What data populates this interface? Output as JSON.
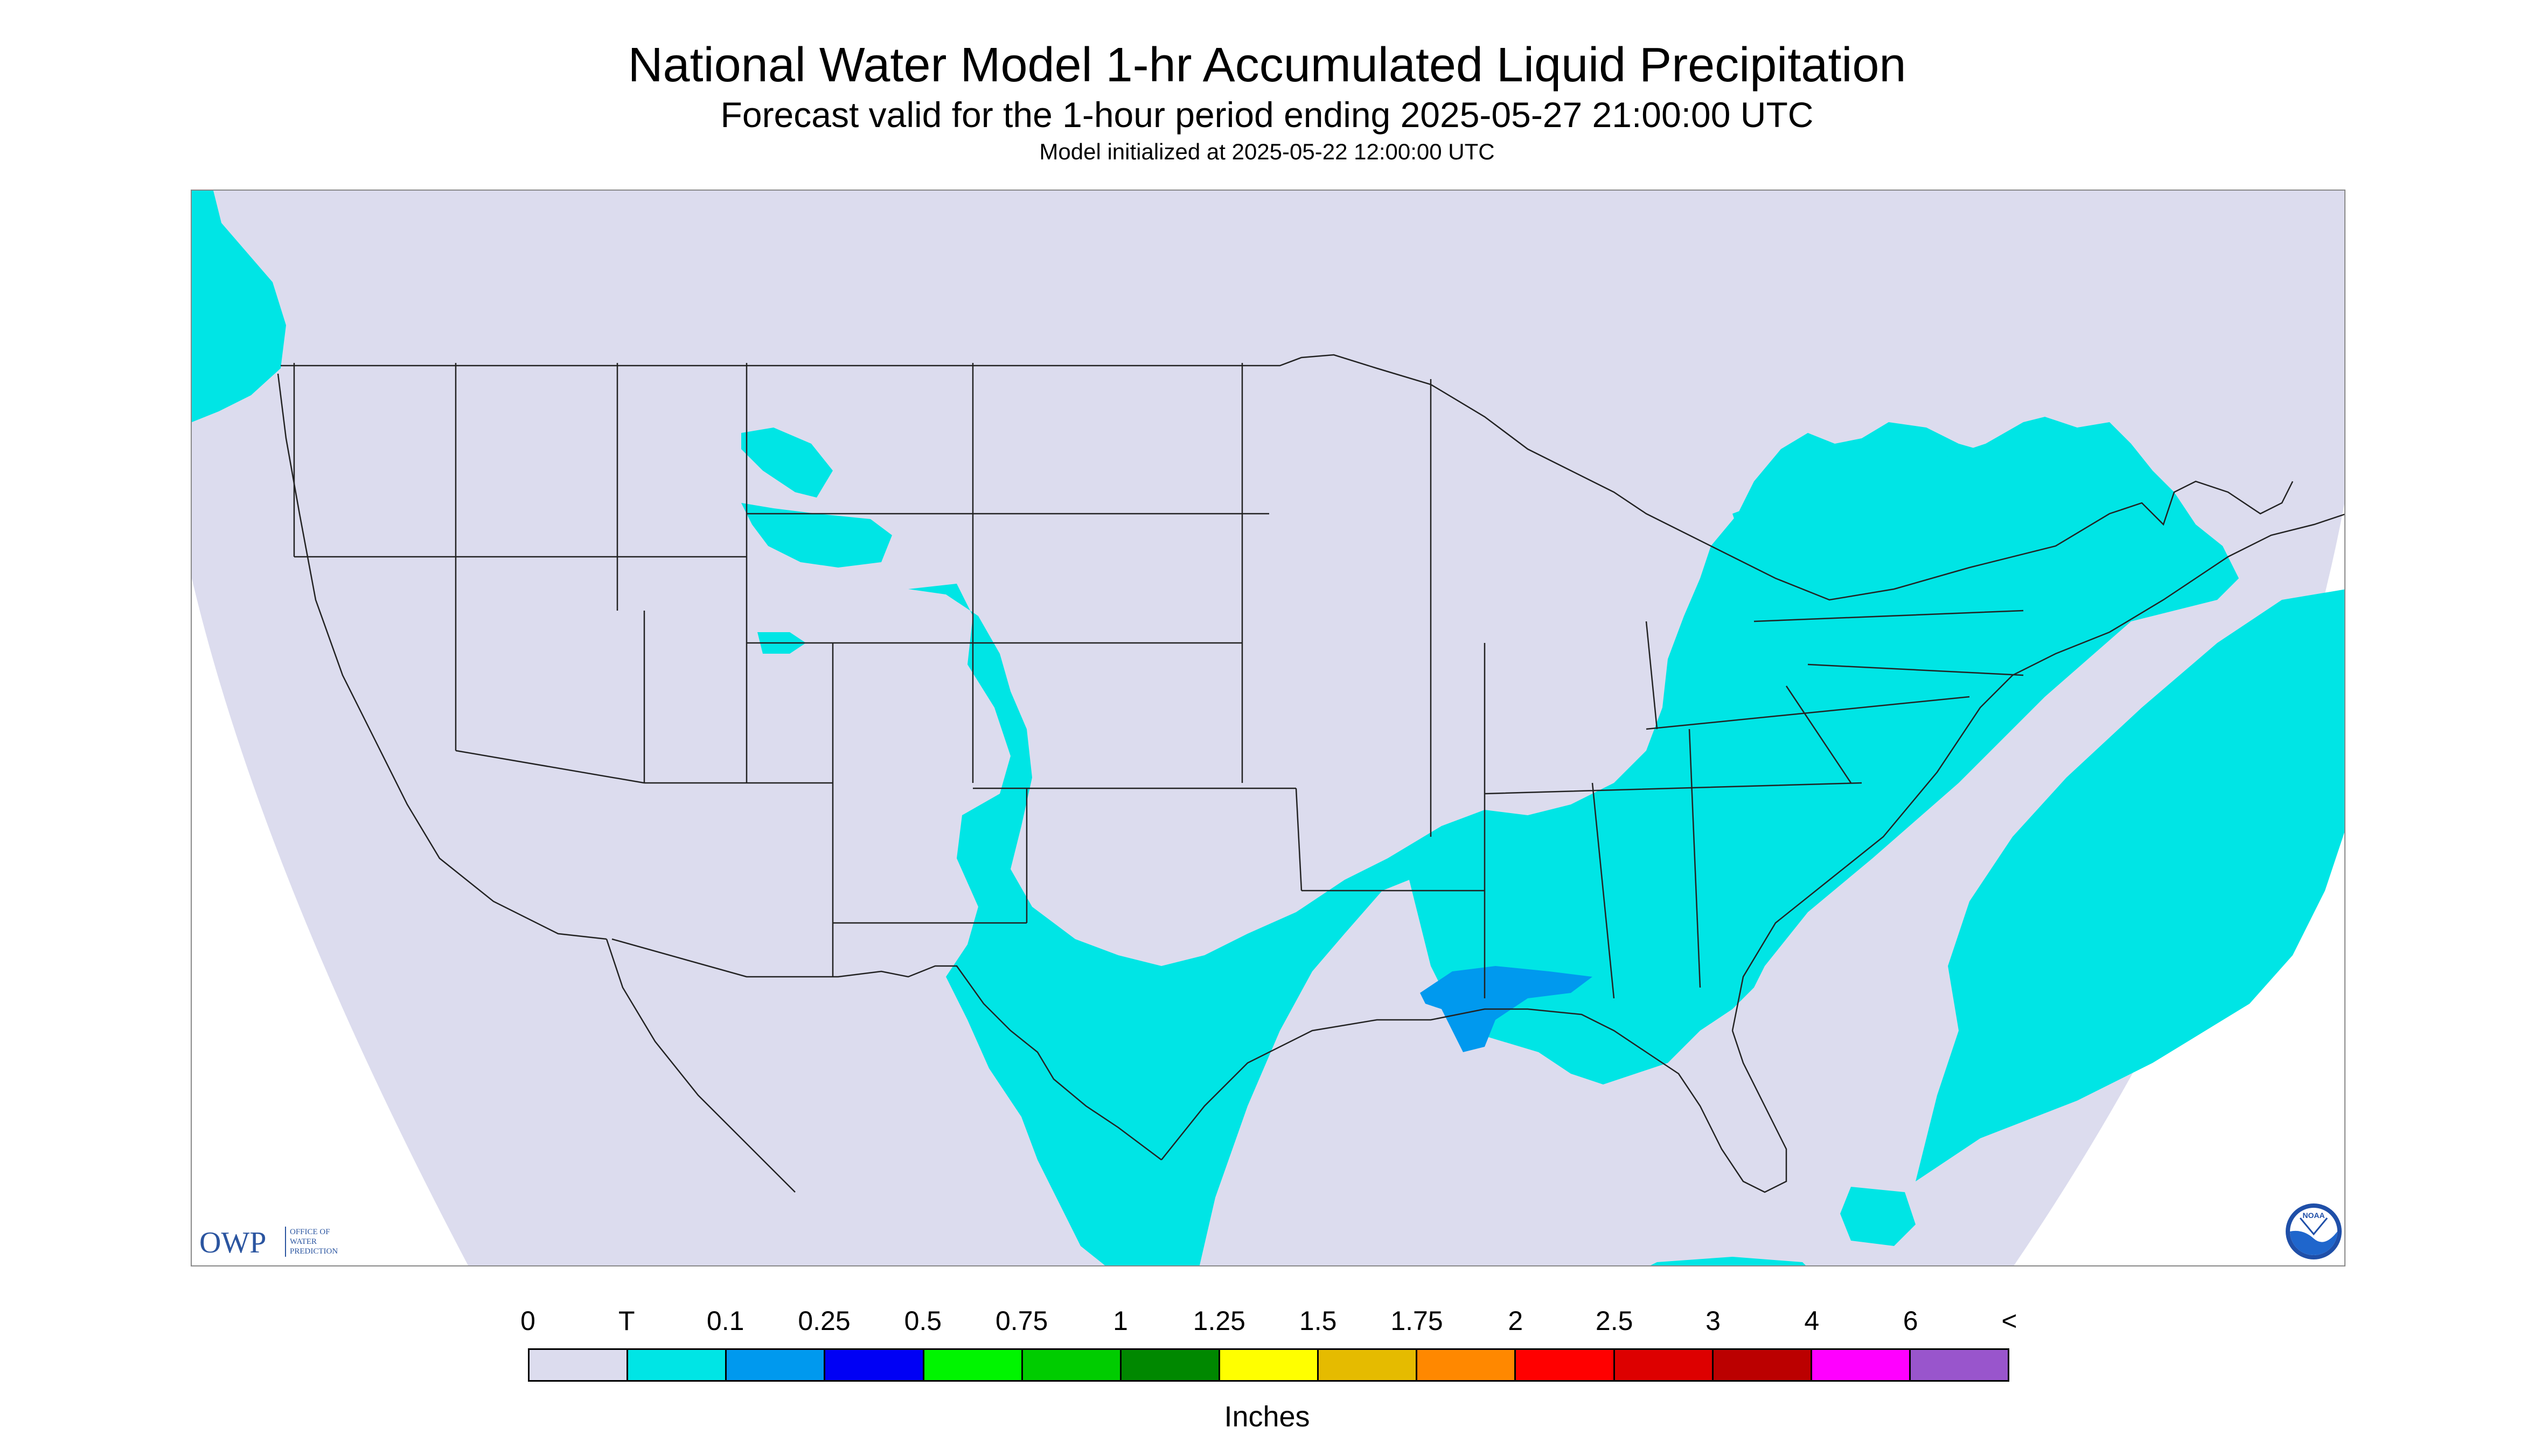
{
  "header": {
    "title": "National Water Model 1-hr Accumulated Liquid Precipitation",
    "subtitle": "Forecast valid for the 1-hour period ending 2025-05-27 21:00:00 UTC",
    "init_line": "Model initialized at 2025-05-22 12:00:00 UTC"
  },
  "map": {
    "background_color": "#dcdcee",
    "outside_domain_color": "#ffffff",
    "boundary_color": "#222222",
    "precip_regions": [
      {
        "area": "Pacific Northwest (western Washington coast)",
        "category": "T"
      },
      {
        "area": "Montana / Wyoming / Colorado Rockies (scattered)",
        "category": "T"
      },
      {
        "area": "New Mexico / west and south Texas",
        "category": "T"
      },
      {
        "area": "Gulf Coast, Southeast, Mid-Atlantic and Ohio Valley",
        "category": "T"
      },
      {
        "area": "Great Lakes and southern Ontario",
        "category": "T"
      },
      {
        "area": "Western Atlantic offshore",
        "category": "T"
      },
      {
        "area": "Southern Mississippi / Alabama coast",
        "category": "0.1"
      }
    ]
  },
  "logos": {
    "owp_text": "OWP",
    "owp_subtext": [
      "OFFICE OF",
      "WATER",
      "PREDICTION"
    ],
    "noaa_text": "NOAA"
  },
  "legend": {
    "labels": [
      "0",
      "T",
      "0.1",
      "0.25",
      "0.5",
      "0.75",
      "1",
      "1.25",
      "1.5",
      "1.75",
      "2",
      "2.5",
      "3",
      "4",
      "6",
      "<"
    ],
    "colors": [
      "#dcdcee",
      "#00e5e5",
      "#0099ee",
      "#0000f5",
      "#00f500",
      "#00cc00",
      "#008800",
      "#ffff00",
      "#e5bb00",
      "#ff8800",
      "#ff0000",
      "#dd0000",
      "#bb0000",
      "#ff00ff",
      "#9955cc"
    ],
    "units": "Inches"
  }
}
